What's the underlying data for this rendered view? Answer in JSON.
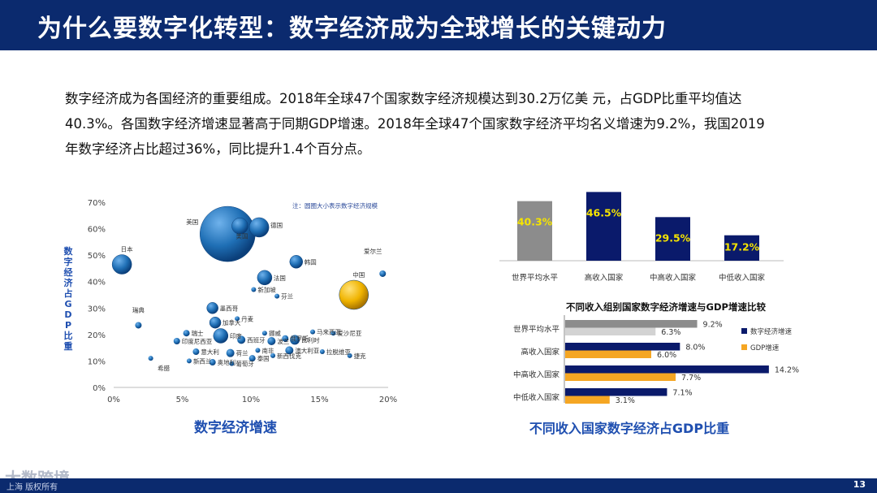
{
  "header": {
    "title": "为什么要数字化转型：数字经济成为全球增长的关键动力"
  },
  "intro": {
    "line1": "数字经济成为各国经济的重要组成。2018年全球47个国家数字经济规模达到30.2万亿美 元，占GDP比重平均值达",
    "line2": "40.3%。各国数字经济增速显著高于同期GDP增速。2018年全球47个国家数字经济平均名义增速为9.2%，我国2019",
    "line3": "年数字经济占比超过36%，同比提升1.4个百分点。"
  },
  "colors": {
    "header": "#0b2a6e",
    "navy": "#0a1a6b",
    "gray": "#8c8c8c",
    "lightgray": "#d3d3d3",
    "orange": "#f5a623",
    "bubble": "#1f6fb5",
    "china": "#f0b400",
    "label_yellow": "#f5e400"
  },
  "chart_data": [
    {
      "type": "scatter",
      "xlabel": "数字经济增速",
      "ylabel": "数字经济占GDP比重",
      "note": "注：圆圈大小表示数字经济规模",
      "xlim": [
        0,
        20
      ],
      "ylim": [
        0,
        70
      ],
      "xticks": [
        "0%",
        "5%",
        "10%",
        "15%",
        "20%"
      ],
      "yticks": [
        "0%",
        "10%",
        "20%",
        "30%",
        "40%",
        "50%",
        "60%",
        "70%"
      ],
      "points": [
        {
          "label": "美国",
          "x": 8.3,
          "y": 58,
          "size": 34
        },
        {
          "label": "德国",
          "x": 10.6,
          "y": 60.5,
          "size": 12
        },
        {
          "label": "美国",
          "x": 9.2,
          "y": 61,
          "size": 10
        },
        {
          "label": "日本",
          "x": 0.6,
          "y": 46.5,
          "size": 12
        },
        {
          "label": "韩国",
          "x": 13.3,
          "y": 47.5,
          "size": 8
        },
        {
          "label": "法国",
          "x": 11.0,
          "y": 41.5,
          "size": 9
        },
        {
          "label": "新加坡",
          "x": 10.2,
          "y": 37,
          "size": 3
        },
        {
          "label": "芬兰",
          "x": 11.9,
          "y": 34.5,
          "size": 3
        },
        {
          "label": "爱尔兰",
          "x": 19.6,
          "y": 43,
          "size": 4
        },
        {
          "label": "中国",
          "x": 17.5,
          "y": 35,
          "size": 18
        },
        {
          "label": "墨西哥",
          "x": 7.2,
          "y": 30,
          "size": 7
        },
        {
          "label": "瑞典",
          "x": 1.8,
          "y": 23.5,
          "size": 4
        },
        {
          "label": "丹麦",
          "x": 9.0,
          "y": 26,
          "size": 3
        },
        {
          "label": "加拿大",
          "x": 7.4,
          "y": 24.5,
          "size": 7
        },
        {
          "label": "瑞士",
          "x": 5.3,
          "y": 20.5,
          "size": 4
        },
        {
          "label": "印度",
          "x": 7.8,
          "y": 19.5,
          "size": 9
        },
        {
          "label": "印度尼西亚",
          "x": 4.6,
          "y": 17.5,
          "size": 4
        },
        {
          "label": "挪威",
          "x": 11.0,
          "y": 20.5,
          "size": 3
        },
        {
          "label": "俄罗斯",
          "x": 12.5,
          "y": 18.5,
          "size": 4
        },
        {
          "label": "比利时",
          "x": 13.2,
          "y": 18,
          "size": 6
        },
        {
          "label": "马来西亚",
          "x": 14.5,
          "y": 21,
          "size": 3
        },
        {
          "label": "爱沙尼亚",
          "x": 16.0,
          "y": 20.5,
          "size": 3
        },
        {
          "label": "西班牙",
          "x": 9.3,
          "y": 18,
          "size": 5
        },
        {
          "label": "波兰",
          "x": 11.5,
          "y": 17.5,
          "size": 5
        },
        {
          "label": "意大利",
          "x": 6.0,
          "y": 13.5,
          "size": 4
        },
        {
          "label": "荷兰",
          "x": 8.5,
          "y": 13,
          "size": 5
        },
        {
          "label": "南非",
          "x": 10.5,
          "y": 14,
          "size": 3
        },
        {
          "label": "澳大利亚",
          "x": 12.8,
          "y": 14,
          "size": 5
        },
        {
          "label": "拉脱维亚",
          "x": 15.2,
          "y": 13.5,
          "size": 3
        },
        {
          "label": "捷克",
          "x": 17.2,
          "y": 12,
          "size": 3
        },
        {
          "label": "希腊",
          "x": 2.7,
          "y": 11,
          "size": 3
        },
        {
          "label": "新西兰",
          "x": 5.5,
          "y": 10,
          "size": 3
        },
        {
          "label": "奥地利",
          "x": 7.2,
          "y": 9.5,
          "size": 4
        },
        {
          "label": "葡萄牙",
          "x": 8.6,
          "y": 9,
          "size": 3
        },
        {
          "label": "泰国",
          "x": 10.1,
          "y": 11,
          "size": 4
        },
        {
          "label": "新西伐克",
          "x": 11.6,
          "y": 12,
          "size": 3
        }
      ]
    },
    {
      "type": "bar",
      "title": "不同收入国家数字经济占GDP比重",
      "categories": [
        "世界平均水平",
        "高收入国家",
        "中高收入国家",
        "中低收入国家"
      ],
      "values": [
        40.3,
        46.5,
        29.5,
        17.2
      ],
      "value_labels": [
        "40.3%",
        "46.5%",
        "29.5%",
        "17.2%"
      ],
      "ylim": [
        0,
        50
      ]
    },
    {
      "type": "bar",
      "orientation": "horizontal",
      "title": "不同收入组别国家数字经济增速与GDP增速比较",
      "categories": [
        "世界平均水平",
        "高收入国家",
        "中高收入国家",
        "中低收入国家"
      ],
      "series": [
        {
          "name": "数字经济增速",
          "values": [
            9.2,
            8.0,
            14.2,
            7.1
          ],
          "labels": [
            "9.2%",
            "8.0%",
            "14.2%",
            "7.1%"
          ]
        },
        {
          "name": "GDP增速",
          "values": [
            6.3,
            6.0,
            7.7,
            3.1
          ],
          "labels": [
            "6.3%",
            "6.0%",
            "7.7%",
            "3.1%"
          ]
        }
      ],
      "xlim": [
        0,
        15
      ],
      "legend": "right"
    }
  ],
  "footer": {
    "page": "13",
    "copyright": "上海 版权所有",
    "watermark": "大数跨境"
  }
}
